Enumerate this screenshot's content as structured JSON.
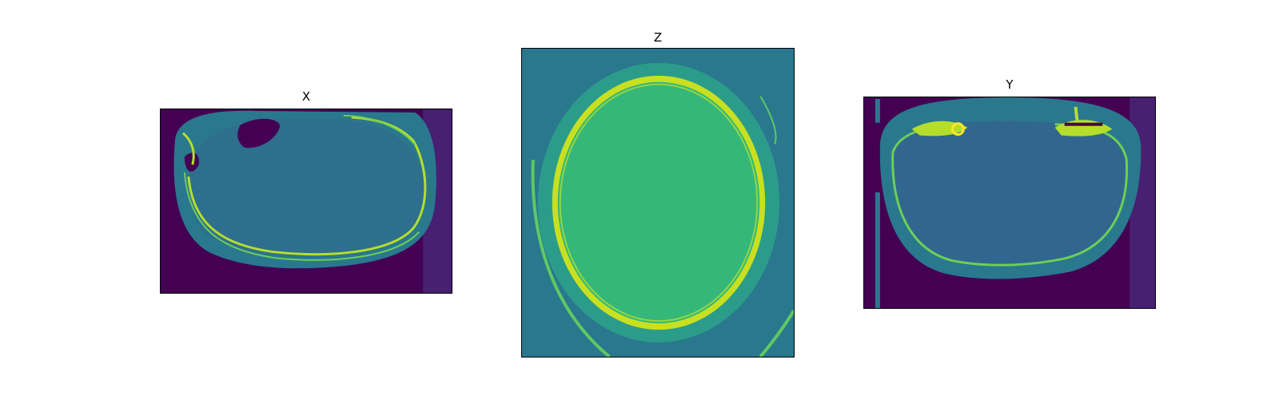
{
  "figure": {
    "panels": [
      {
        "id": "x",
        "title": "X"
      },
      {
        "id": "z",
        "title": "Z"
      },
      {
        "id": "y",
        "title": "Y"
      }
    ]
  },
  "colormap": {
    "name": "viridis",
    "background": "#440154",
    "soft_tissue": "#2a788e",
    "brain": "#2fb47c",
    "bone": "#fde725",
    "dark_purple": "#3b0f70"
  }
}
